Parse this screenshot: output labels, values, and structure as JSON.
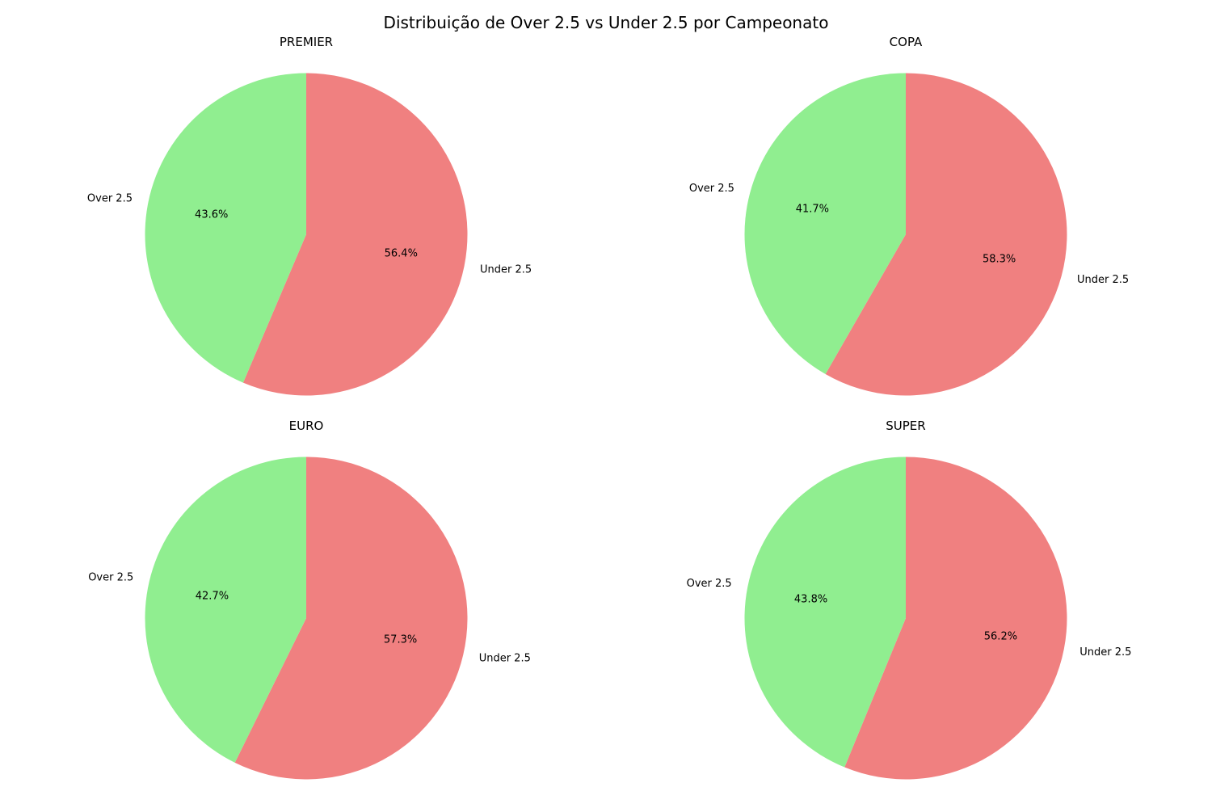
{
  "chart_data": {
    "type": "pie",
    "title": "Distribuição de Over 2.5 vs Under 2.5 por Campeonato",
    "colors": {
      "Over 2.5": "#90EE90",
      "Under 2.5": "#F08080"
    },
    "start_angle": 90,
    "direction": "clockwise-under-first",
    "layout": "2x2",
    "charts": [
      {
        "title": "PREMIER",
        "labels": [
          "Under 2.5",
          "Over 2.5"
        ],
        "values": [
          56.4,
          43.6
        ],
        "percent_labels": [
          "56.4%",
          "43.6%"
        ]
      },
      {
        "title": "COPA",
        "labels": [
          "Under 2.5",
          "Over 2.5"
        ],
        "values": [
          58.3,
          41.7
        ],
        "percent_labels": [
          "58.3%",
          "41.7%"
        ]
      },
      {
        "title": "EURO",
        "labels": [
          "Under 2.5",
          "Over 2.5"
        ],
        "values": [
          57.3,
          42.7
        ],
        "percent_labels": [
          "57.3%",
          "42.7%"
        ]
      },
      {
        "title": "SUPER",
        "labels": [
          "Under 2.5",
          "Over 2.5"
        ],
        "values": [
          56.2,
          43.8
        ],
        "percent_labels": [
          "56.2%",
          "43.8%"
        ]
      }
    ]
  }
}
